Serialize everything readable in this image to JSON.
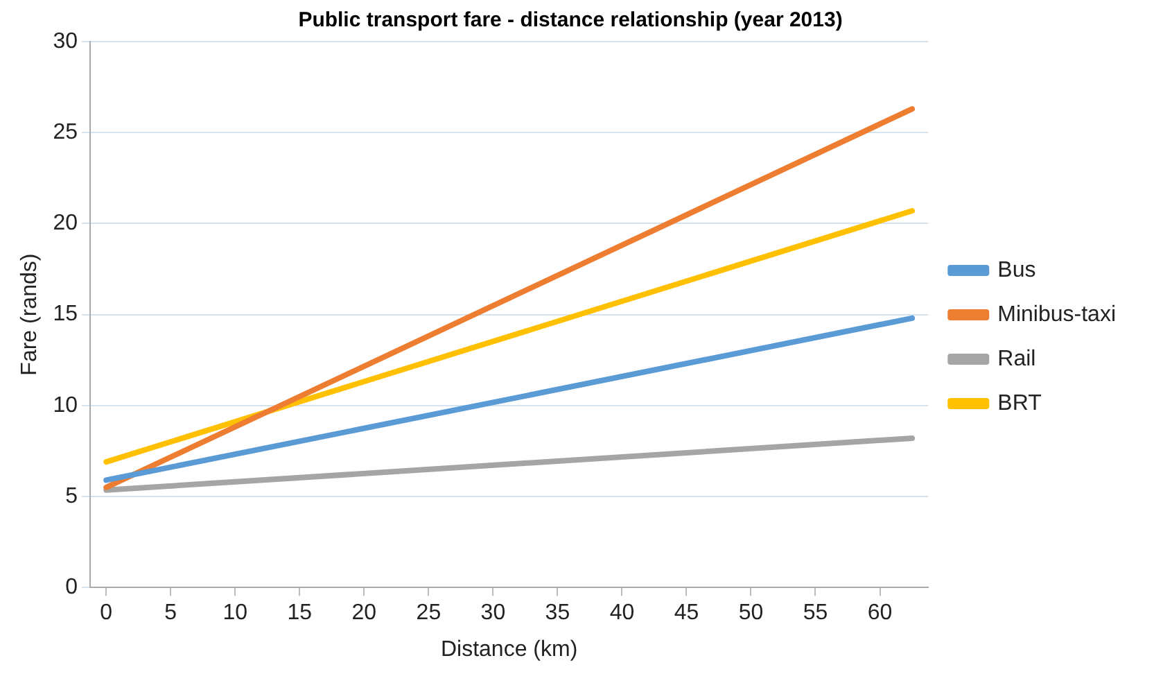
{
  "chart_data": {
    "type": "line",
    "title": "Public transport fare - distance relationship (year 2013)",
    "xlabel": "Distance (km)",
    "ylabel": "Fare (rands)",
    "x": [
      0,
      62.5
    ],
    "series": [
      {
        "name": "Bus",
        "color": "#5b9bd5",
        "values": [
          5.9,
          14.8
        ]
      },
      {
        "name": "Minibus-taxi",
        "color": "#ed7d31",
        "values": [
          5.5,
          26.3
        ]
      },
      {
        "name": "Rail",
        "color": "#a5a5a5",
        "values": [
          5.35,
          8.2
        ]
      },
      {
        "name": "BRT",
        "color": "#ffc000",
        "values": [
          6.9,
          20.7
        ]
      }
    ],
    "xlim": [
      -1.25,
      63.75
    ],
    "xticks": [
      0,
      5,
      10,
      15,
      20,
      25,
      30,
      35,
      40,
      45,
      50,
      55,
      60
    ],
    "ylim": [
      0,
      30
    ],
    "yticks": [
      0,
      5,
      10,
      15,
      20,
      25,
      30
    ],
    "grid": "y",
    "legend": "right",
    "marker": "none",
    "line_style": "solid"
  }
}
